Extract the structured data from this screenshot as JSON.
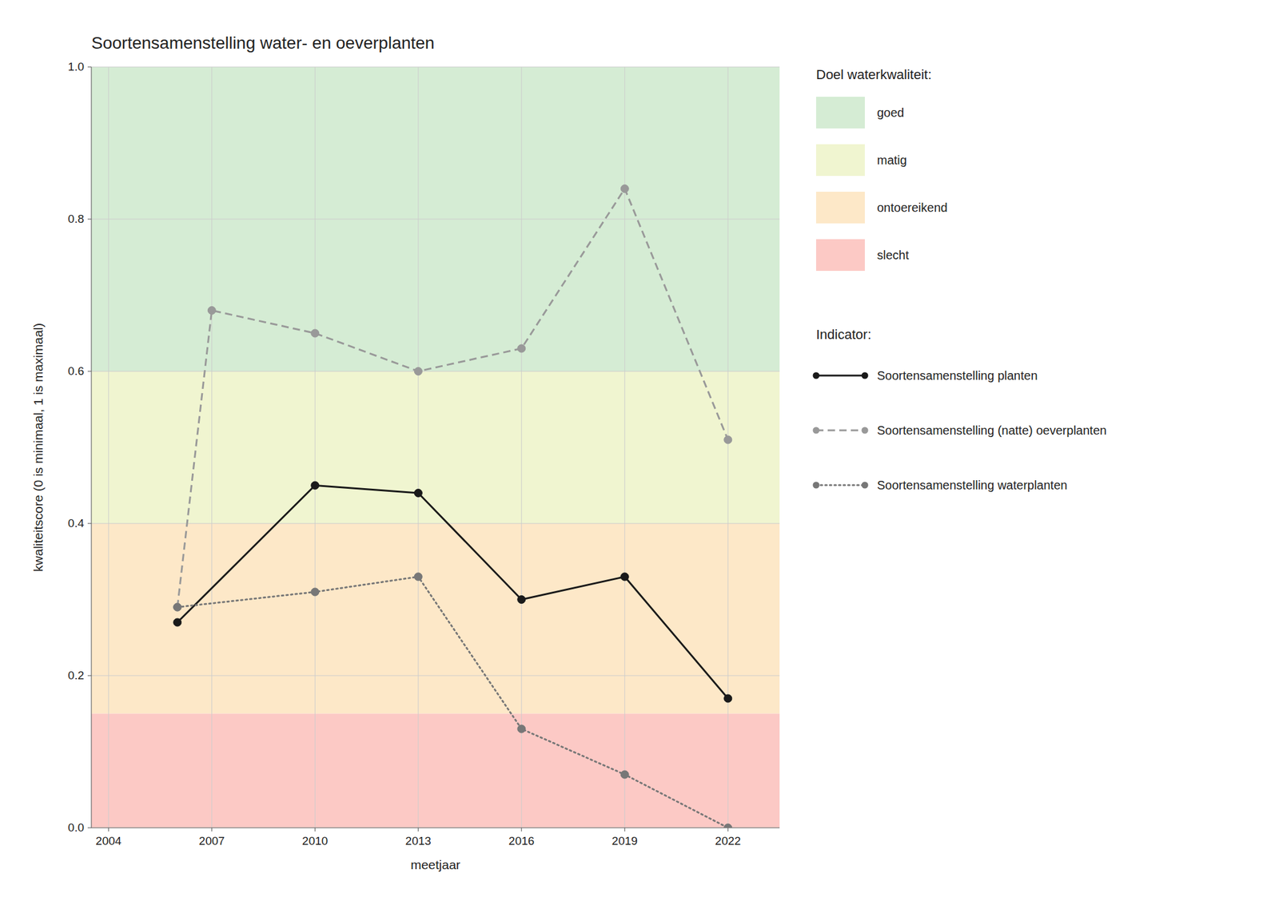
{
  "chart_data": {
    "type": "line",
    "title": "Soortensamenstelling water- en oeverplanten",
    "x_label": "meetjaar",
    "y_label": "kwaliteitscore (0 is minimaal, 1 is maximaal)",
    "xlim": [
      2003.5,
      2023.5
    ],
    "ylim": [
      0.0,
      1.0
    ],
    "xticks": [
      2004,
      2007,
      2010,
      2013,
      2016,
      2019,
      2022
    ],
    "yticks": [
      {
        "value": 0.0,
        "label": "0.0"
      },
      0.2,
      0.4,
      0.6,
      0.8,
      {
        "value": 1.0,
        "label": "1.0"
      }
    ],
    "grid": true,
    "legend": "right",
    "bands_title": "Doel waterkwaliteit:",
    "bands": [
      {
        "label": "goed",
        "ymin": 0.6,
        "ymax": 1.0,
        "color": "#d5ecd4"
      },
      {
        "label": "matig",
        "ymin": 0.4,
        "ymax": 0.6,
        "color": "#f0f5d0"
      },
      {
        "label": "ontoereikend",
        "ymin": 0.15,
        "ymax": 0.4,
        "color": "#fde8c8"
      },
      {
        "label": "slecht",
        "ymin": 0.0,
        "ymax": 0.15,
        "color": "#fcc9c5"
      }
    ],
    "series_title": "Indicator:",
    "series": [
      {
        "name": "Soortensamenstelling planten",
        "color": "#1a1a1a",
        "line_style": "solid",
        "marker": "circle",
        "x": [
          2006,
          2010,
          2013,
          2016,
          2019,
          2022
        ],
        "values": [
          0.27,
          0.45,
          0.44,
          0.3,
          0.33,
          0.17
        ]
      },
      {
        "name": "Soortensamenstelling (natte) oeverplanten",
        "color": "#999999",
        "line_style": "dashed",
        "marker": "circle",
        "x": [
          2006,
          2007,
          2010,
          2013,
          2016,
          2019,
          2022
        ],
        "values": [
          0.29,
          0.68,
          0.65,
          0.6,
          0.63,
          0.84,
          0.51
        ]
      },
      {
        "name": "Soortensamenstelling waterplanten",
        "color": "#777777",
        "line_style": "dotted",
        "marker": "circle",
        "x": [
          2006,
          2010,
          2013,
          2016,
          2019,
          2022
        ],
        "values": [
          0.29,
          0.31,
          0.33,
          0.13,
          0.07,
          0.0
        ]
      }
    ]
  }
}
